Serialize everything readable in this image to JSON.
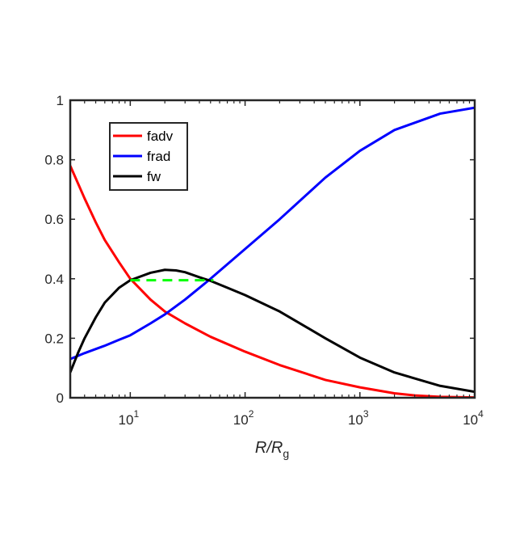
{
  "chart_data": {
    "type": "line",
    "title": "",
    "xlabel": {
      "main": "R/R",
      "sub": "g"
    },
    "ylabel": "",
    "xscale": "log",
    "xlim": [
      3,
      10000
    ],
    "ylim": [
      0,
      1
    ],
    "x_ticks": [
      {
        "value": 10,
        "base": "10",
        "exp": "1"
      },
      {
        "value": 100,
        "base": "10",
        "exp": "2"
      },
      {
        "value": 1000,
        "base": "10",
        "exp": "3"
      },
      {
        "value": 10000,
        "base": "10",
        "exp": "4"
      }
    ],
    "y_ticks": [
      {
        "value": 0,
        "label": "0"
      },
      {
        "value": 0.2,
        "label": "0.2"
      },
      {
        "value": 0.4,
        "label": "0.4"
      },
      {
        "value": 0.6,
        "label": "0.6"
      },
      {
        "value": 0.8,
        "label": "0.8"
      },
      {
        "value": 1,
        "label": "1"
      }
    ],
    "grid": false,
    "legend_position": "top-left",
    "series": [
      {
        "name": "fadv",
        "color": "#ff0000",
        "x": [
          3,
          4,
          5,
          6,
          8,
          10,
          15,
          20,
          30,
          50,
          100,
          200,
          500,
          1000,
          2000,
          3000,
          5000,
          10000
        ],
        "y": [
          0.78,
          0.67,
          0.59,
          0.53,
          0.455,
          0.4,
          0.33,
          0.29,
          0.25,
          0.205,
          0.155,
          0.11,
          0.06,
          0.035,
          0.015,
          0.008,
          0.003,
          0.001
        ]
      },
      {
        "name": "frad",
        "color": "#0000ff",
        "x": [
          3,
          4,
          6,
          8,
          10,
          15,
          20,
          30,
          50,
          100,
          200,
          500,
          1000,
          2000,
          5000,
          10000
        ],
        "y": [
          0.13,
          0.15,
          0.175,
          0.195,
          0.21,
          0.25,
          0.28,
          0.33,
          0.4,
          0.5,
          0.6,
          0.74,
          0.83,
          0.9,
          0.955,
          0.975
        ]
      },
      {
        "name": "fw",
        "color": "#000000",
        "x": [
          3,
          3.5,
          4,
          5,
          6,
          8,
          10,
          15,
          20,
          25,
          30,
          40,
          50,
          70,
          100,
          200,
          500,
          1000,
          2000,
          5000,
          10000
        ],
        "y": [
          0.085,
          0.15,
          0.2,
          0.27,
          0.32,
          0.37,
          0.395,
          0.42,
          0.43,
          0.428,
          0.422,
          0.405,
          0.393,
          0.37,
          0.345,
          0.29,
          0.2,
          0.135,
          0.085,
          0.04,
          0.02
        ]
      }
    ],
    "annotations": [
      {
        "type": "dashed-line",
        "color": "#00ff00",
        "x": [
          10,
          53
        ],
        "y": [
          0.395,
          0.395
        ]
      }
    ]
  }
}
